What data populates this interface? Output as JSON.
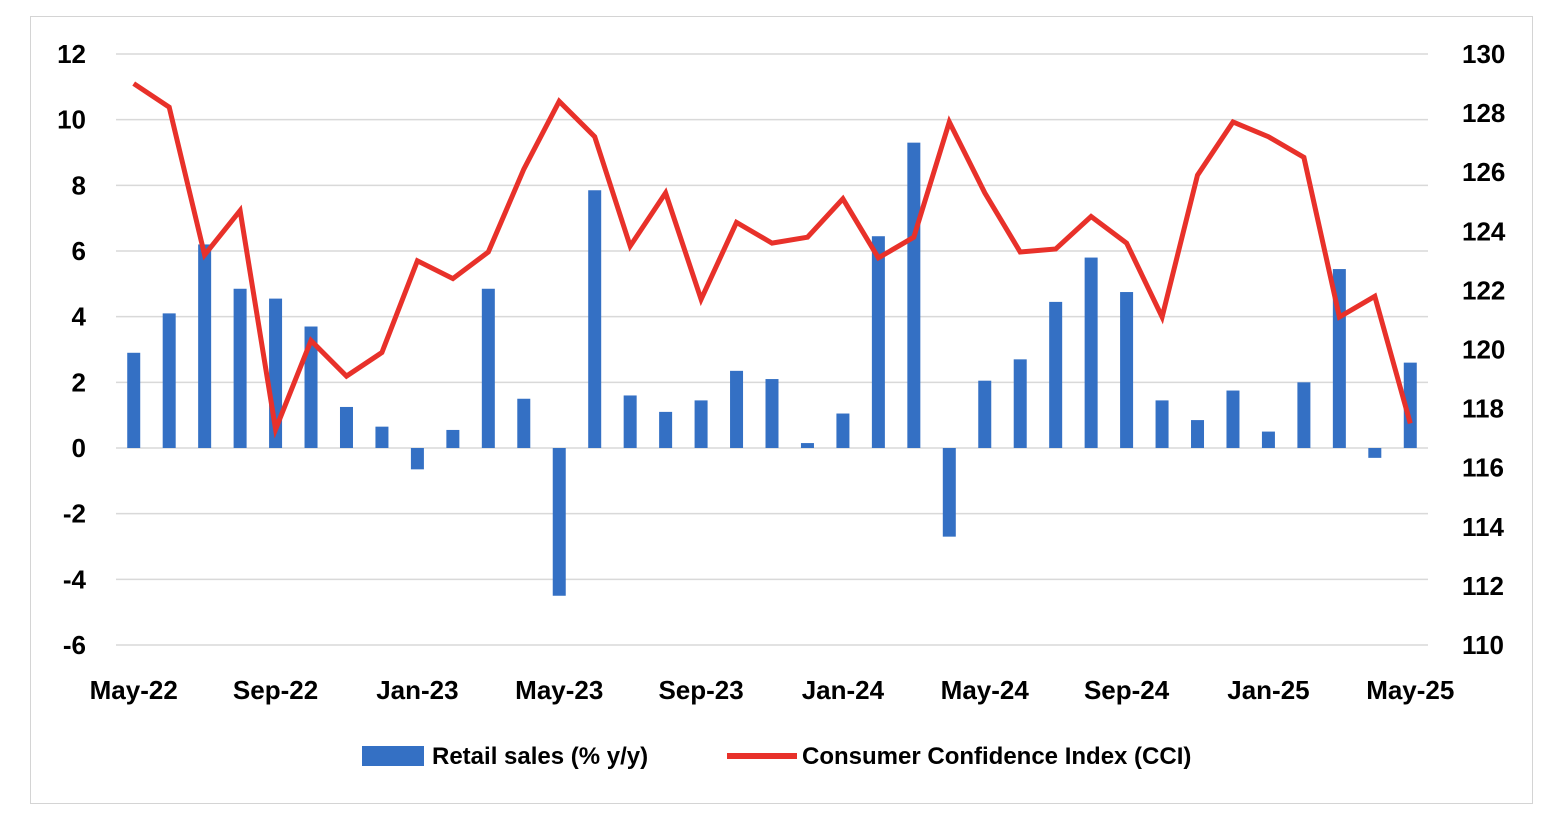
{
  "chart_data": {
    "type": "bar+line",
    "title": "",
    "x": [
      "May-22",
      "Jun-22",
      "Jul-22",
      "Aug-22",
      "Sep-22",
      "Oct-22",
      "Nov-22",
      "Dec-22",
      "Jan-23",
      "Feb-23",
      "Mar-23",
      "Apr-23",
      "May-23",
      "Jun-23",
      "Jul-23",
      "Aug-23",
      "Sep-23",
      "Oct-23",
      "Nov-23",
      "Dec-23",
      "Jan-24",
      "Feb-24",
      "Mar-24",
      "Apr-24",
      "May-24",
      "Jun-24",
      "Jul-24",
      "Aug-24",
      "Sep-24",
      "Oct-24",
      "Nov-24",
      "Dec-24",
      "Jan-25",
      "Feb-25",
      "Mar-25",
      "Apr-25",
      "May-25"
    ],
    "x_tick_labels": [
      "May-22",
      "Sep-22",
      "Jan-23",
      "May-23",
      "Sep-23",
      "Jan-24",
      "May-24",
      "Sep-24",
      "Jan-25",
      "May-25"
    ],
    "y_left": {
      "min": -6,
      "max": 12,
      "step": 2,
      "ticks": [
        -6,
        -4,
        -2,
        0,
        2,
        4,
        6,
        8,
        10,
        12
      ]
    },
    "y_right": {
      "min": 110,
      "max": 130,
      "step": 2,
      "ticks": [
        110,
        112,
        114,
        116,
        118,
        120,
        122,
        124,
        126,
        128,
        130
      ]
    },
    "grid": true,
    "legend_position": "bottom",
    "series": [
      {
        "name": "Retail sales (% y/y)",
        "type": "bar",
        "axis": "left",
        "color": "#3470c4",
        "values": [
          2.9,
          4.1,
          6.2,
          4.85,
          4.55,
          3.7,
          1.25,
          0.65,
          -0.65,
          0.55,
          4.85,
          1.5,
          -4.5,
          7.85,
          1.6,
          1.1,
          1.45,
          2.35,
          2.1,
          0.15,
          1.05,
          6.45,
          9.3,
          -2.7,
          2.05,
          2.7,
          4.45,
          5.8,
          4.75,
          1.45,
          0.85,
          1.75,
          0.5,
          2.0,
          5.45,
          -0.3,
          2.6
        ]
      },
      {
        "name": "Consumer Confidence Index (CCI)",
        "type": "line",
        "axis": "right",
        "color": "#e8312a",
        "values": [
          129.0,
          128.2,
          123.2,
          124.7,
          117.3,
          120.3,
          119.1,
          119.9,
          123.0,
          122.4,
          123.3,
          126.1,
          128.4,
          127.2,
          123.5,
          125.3,
          121.7,
          124.3,
          123.6,
          123.8,
          125.1,
          123.1,
          123.8,
          127.7,
          125.3,
          123.3,
          123.4,
          124.5,
          123.6,
          121.1,
          125.9,
          127.7,
          127.2,
          126.5,
          121.1,
          121.8,
          117.5
        ]
      }
    ]
  }
}
